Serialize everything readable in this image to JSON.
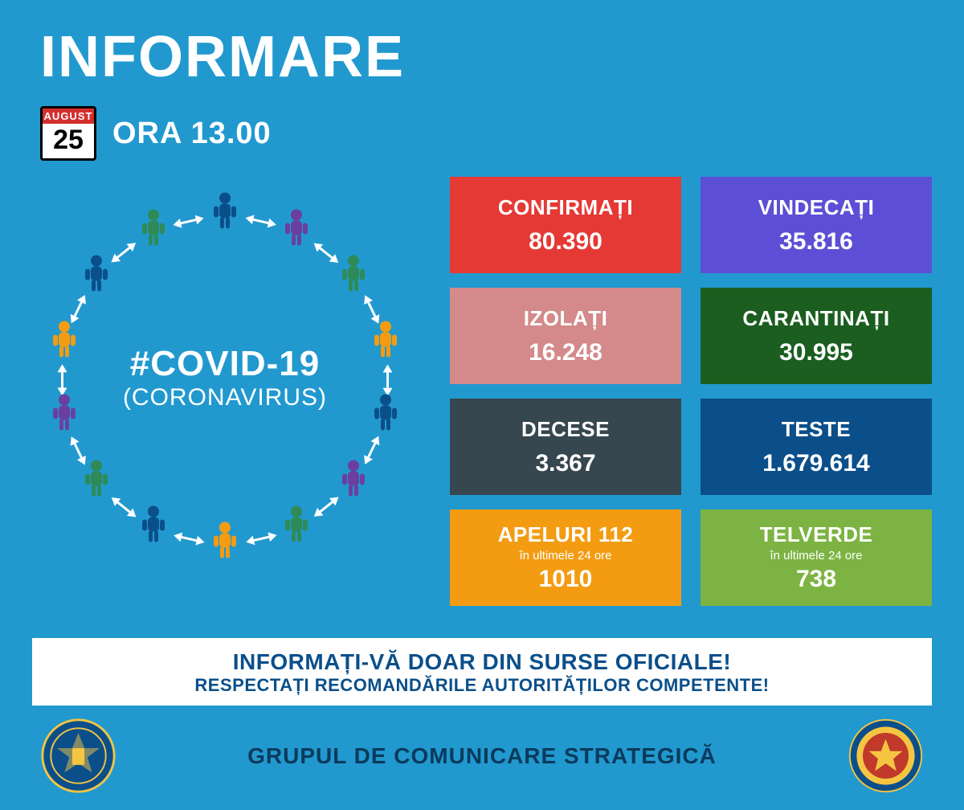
{
  "header": {
    "title": "INFORMARE",
    "month": "AUGUST",
    "day": "25",
    "time": "ORA 13.00"
  },
  "circle": {
    "hashtag": "#COVID-19",
    "subtitle": "(CORONAVIRUS)",
    "person_colors": [
      "#0b4f8a",
      "#6a3fa0",
      "#2e8b57",
      "#f39c12",
      "#0b4f8a",
      "#6a3fa0",
      "#2e8b57",
      "#f39c12",
      "#0b4f8a",
      "#2e8b57",
      "#6a3fa0",
      "#f39c12",
      "#0b4f8a",
      "#2e8b57"
    ],
    "arrow_color": "#ffffff"
  },
  "cards": [
    {
      "label": "CONFIRMAȚI",
      "sub": "",
      "value": "80.390",
      "bg": "#e53935"
    },
    {
      "label": "VINDECAȚI",
      "sub": "",
      "value": "35.816",
      "bg": "#5c4fd6"
    },
    {
      "label": "IZOLAȚI",
      "sub": "",
      "value": "16.248",
      "bg": "#d48a8a"
    },
    {
      "label": "CARANTINAȚI",
      "sub": "",
      "value": "30.995",
      "bg": "#1b5e20"
    },
    {
      "label": "DECESE",
      "sub": "",
      "value": "3.367",
      "bg": "#37474f"
    },
    {
      "label": "TESTE",
      "sub": "",
      "value": "1.679.614",
      "bg": "#0b4f8a"
    },
    {
      "label": "APELURI 112",
      "sub": "în ultimele 24 ore",
      "value": "1010",
      "bg": "#f39c12"
    },
    {
      "label": "TELVERDE",
      "sub": "în ultimele 24 ore",
      "value": "738",
      "bg": "#7cb342"
    }
  ],
  "banner": {
    "line1": "INFORMAȚI-VĂ DOAR DIN SURSE OFICIALE!",
    "line2": "RESPECTAȚI RECOMANDĂRILE AUTORITĂȚILOR COMPETENTE!"
  },
  "footer": {
    "text": "GRUPUL DE COMUNICARE STRATEGICĂ",
    "seal_left_stroke": "#f5c542",
    "seal_left_fill": "#0b4f8a",
    "seal_right_colors": {
      "outer": "#0b4f8a",
      "ring": "#f5c542",
      "inner": "#c0392b"
    }
  },
  "style": {
    "background": "#2199cf",
    "banner_bg": "#ffffff",
    "banner_text": "#0b4f8a",
    "footer_text_color": "#0a3a5c"
  }
}
